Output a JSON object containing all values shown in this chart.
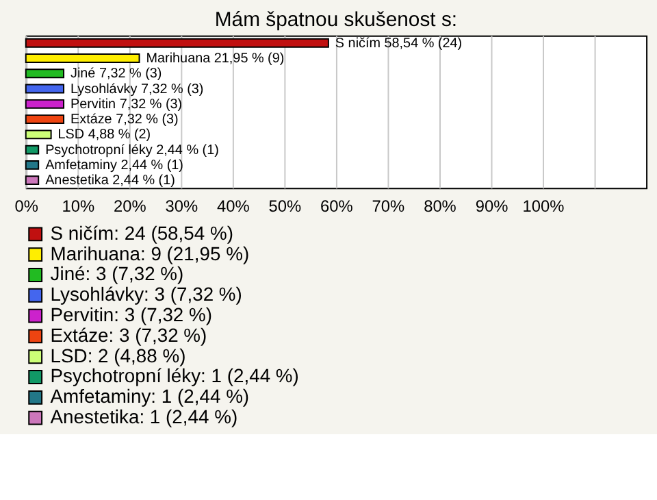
{
  "chart_data": {
    "type": "bar",
    "orientation": "horizontal",
    "title": "Mám špatnou skušenost s:",
    "categories": [
      null,
      null,
      null,
      null,
      null,
      null,
      null,
      null,
      null,
      null
    ],
    "series": [
      {
        "name": "S ničím: 24 (58,54 %)",
        "color": "#c01010",
        "values": [
          58.54,
          null,
          null,
          null,
          null,
          null,
          null,
          null,
          null,
          null
        ],
        "value_labels": [
          "S ničím 58,54 % (24)",
          null,
          null,
          null,
          null,
          null,
          null,
          null,
          null,
          null
        ]
      },
      {
        "name": "Marihuana: 9 (21,95 %)",
        "color": "#ffee00",
        "values": [
          null,
          21.95,
          null,
          null,
          null,
          null,
          null,
          null,
          null,
          null
        ],
        "value_labels": [
          null,
          "Marihuana 21,95 % (9)",
          null,
          null,
          null,
          null,
          null,
          null,
          null,
          null
        ]
      },
      {
        "name": "Jiné: 3 (7,32 %)",
        "color": "#22bb22",
        "values": [
          null,
          null,
          7.32,
          null,
          null,
          null,
          null,
          null,
          null,
          null
        ],
        "value_labels": [
          null,
          null,
          "Jiné 7,32 % (3)",
          null,
          null,
          null,
          null,
          null,
          null,
          null
        ]
      },
      {
        "name": "Lysohlávky: 3 (7,32 %)",
        "color": "#4466ee",
        "values": [
          null,
          null,
          null,
          7.32,
          null,
          null,
          null,
          null,
          null,
          null
        ],
        "value_labels": [
          null,
          null,
          null,
          "Lysohlávky 7,32 % (3)",
          null,
          null,
          null,
          null,
          null,
          null
        ]
      },
      {
        "name": "Pervitin: 3 (7,32 %)",
        "color": "#cc22cc",
        "values": [
          null,
          null,
          null,
          null,
          7.32,
          null,
          null,
          null,
          null,
          null
        ],
        "value_labels": [
          null,
          null,
          null,
          null,
          "Pervitin 7,32 % (3)",
          null,
          null,
          null,
          null,
          null
        ]
      },
      {
        "name": "Extáze: 3 (7,32 %)",
        "color": "#ee4411",
        "values": [
          null,
          null,
          null,
          null,
          null,
          7.32,
          null,
          null,
          null,
          null
        ],
        "value_labels": [
          null,
          null,
          null,
          null,
          null,
          "Extáze 7,32 % (3)",
          null,
          null,
          null,
          null
        ]
      },
      {
        "name": "LSD: 2 (4,88 %)",
        "color": "#ccff77",
        "values": [
          null,
          null,
          null,
          null,
          null,
          null,
          4.88,
          null,
          null,
          null
        ],
        "value_labels": [
          null,
          null,
          null,
          null,
          null,
          null,
          "LSD 4,88 % (2)",
          null,
          null,
          null
        ]
      },
      {
        "name": "Psychotropní léky: 1 (2,44 %)",
        "color": "#119966",
        "values": [
          null,
          null,
          null,
          null,
          null,
          null,
          null,
          2.44,
          null,
          null
        ],
        "value_labels": [
          null,
          null,
          null,
          null,
          null,
          null,
          null,
          "Psychotropní léky 2,44 % (1)",
          null,
          null
        ]
      },
      {
        "name": "Amfetaminy: 1 (2,44 %)",
        "color": "#227788",
        "values": [
          null,
          null,
          null,
          null,
          null,
          null,
          null,
          null,
          2.44,
          null
        ],
        "value_labels": [
          null,
          null,
          null,
          null,
          null,
          null,
          null,
          null,
          "Amfetaminy 2,44 % (1)",
          null
        ]
      },
      {
        "name": "Anestetika: 1 (2,44 %)",
        "color": "#cc77bb",
        "values": [
          null,
          null,
          null,
          null,
          null,
          null,
          null,
          null,
          null,
          2.44
        ],
        "value_labels": [
          null,
          null,
          null,
          null,
          null,
          null,
          null,
          null,
          null,
          "Anestetika 2,44 % (1)"
        ]
      }
    ],
    "xlim": [
      0,
      120
    ],
    "xticks": [
      {
        "value": 0,
        "label": "0%"
      },
      {
        "value": 10,
        "label": "10%"
      },
      {
        "value": 20,
        "label": "20%"
      },
      {
        "value": 30,
        "label": "30%"
      },
      {
        "value": 40,
        "label": "40%"
      },
      {
        "value": 50,
        "label": "50%"
      },
      {
        "value": 60,
        "label": "60%"
      },
      {
        "value": 70,
        "label": "70%"
      },
      {
        "value": 80,
        "label": "80%"
      },
      {
        "value": 90,
        "label": "90%"
      },
      {
        "value": 100,
        "label": "100%"
      },
      {
        "value": 110,
        "label": null
      }
    ],
    "grid": "x",
    "legend": "bottom",
    "tick_labels": "x"
  }
}
